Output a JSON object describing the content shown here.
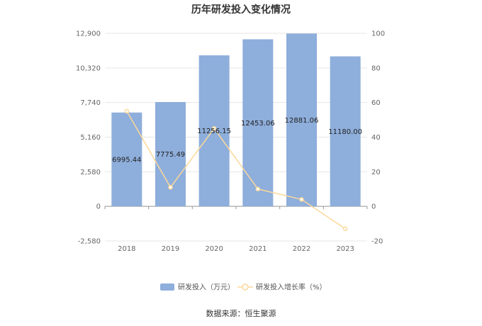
{
  "chart_data": {
    "type": "bar",
    "title": "历年研发投入变化情况",
    "categories": [
      "2018",
      "2019",
      "2020",
      "2021",
      "2022",
      "2023"
    ],
    "series": [
      {
        "name": "研发投入（万元）",
        "type": "bar",
        "axis": "left",
        "color": "#8eaedb",
        "values": [
          6995.44,
          7775.49,
          11256.15,
          12453.06,
          12881.06,
          11180.0
        ],
        "labels": [
          "6995.44",
          "7775.49",
          "11256.15",
          "12453.06",
          "12881.06",
          "11180.00"
        ]
      },
      {
        "name": "研发投入增长率（%）",
        "type": "line",
        "axis": "right",
        "color": "#fbd89a",
        "values": [
          55,
          11,
          45,
          10,
          4,
          -13
        ]
      }
    ],
    "y_left": {
      "ticks": [
        "12,900",
        "10,320",
        "7,740",
        "5,160",
        "2,580",
        "0",
        "-2,580"
      ],
      "range": [
        -2580,
        12900
      ]
    },
    "y_right": {
      "ticks": [
        "100",
        "80",
        "60",
        "40",
        "20",
        "0",
        "-20"
      ],
      "range": [
        -20,
        100
      ]
    },
    "grid": true,
    "legend_position": "bottom",
    "source": "数据来源：恒生聚源"
  }
}
